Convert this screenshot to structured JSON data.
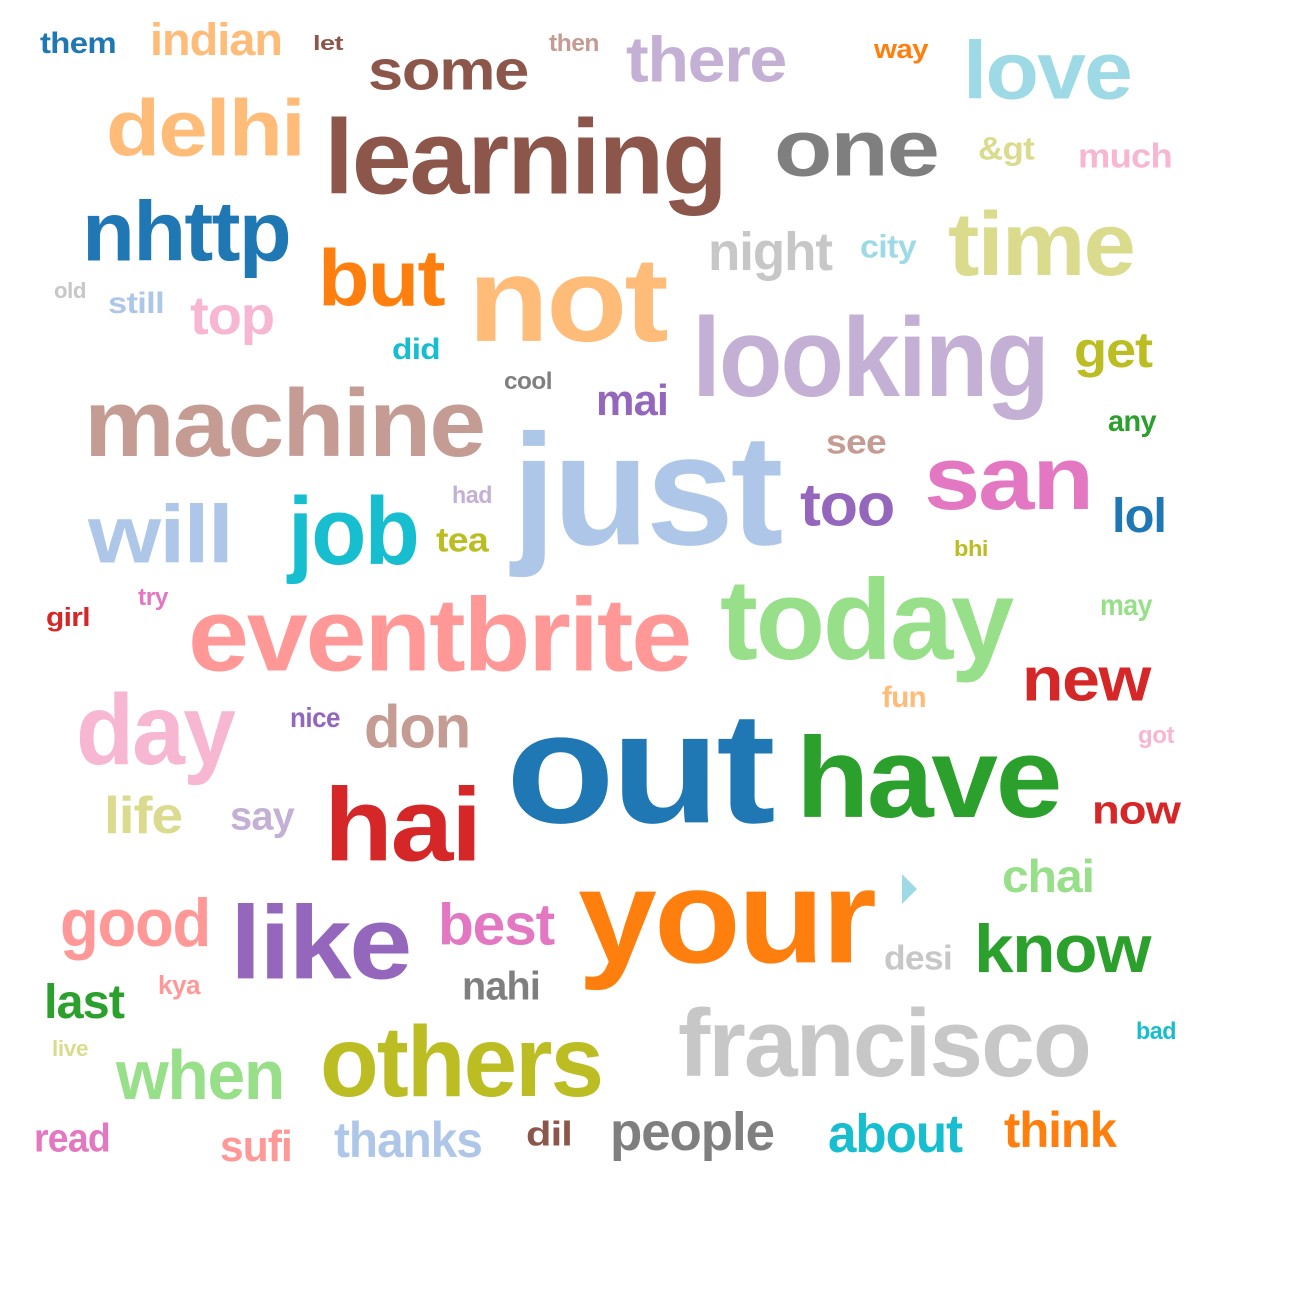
{
  "words": [
    {
      "text": "them",
      "color": "#1f77b4"
    },
    {
      "text": "indian",
      "color": "#ffbb78"
    },
    {
      "text": "let",
      "color": "#8c564b"
    },
    {
      "text": "some",
      "color": "#8c564b"
    },
    {
      "text": "then",
      "color": "#c49c94"
    },
    {
      "text": "there",
      "color": "#c5b0d5"
    },
    {
      "text": "way",
      "color": "#ff7f0e"
    },
    {
      "text": "love",
      "color": "#9edae5"
    },
    {
      "text": "delhi",
      "color": "#ffbb78"
    },
    {
      "text": "learning",
      "color": "#8c564b"
    },
    {
      "text": "one",
      "color": "#7f7f7f"
    },
    {
      "text": "&gt",
      "color": "#dbdb8d"
    },
    {
      "text": "much",
      "color": "#f7b6d2"
    },
    {
      "text": "nhttp",
      "color": "#1f77b4"
    },
    {
      "text": "night",
      "color": "#c7c7c7"
    },
    {
      "text": "city",
      "color": "#9edae5"
    },
    {
      "text": "time",
      "color": "#dbdb8d"
    },
    {
      "text": "but",
      "color": "#ff7f0e"
    },
    {
      "text": "not",
      "color": "#ffbb78"
    },
    {
      "text": "old",
      "color": "#c7c7c7"
    },
    {
      "text": "still",
      "color": "#aec7e8"
    },
    {
      "text": "top",
      "color": "#f7b6d2"
    },
    {
      "text": "looking",
      "color": "#c5b0d5"
    },
    {
      "text": "get",
      "color": "#bcbd22"
    },
    {
      "text": "did",
      "color": "#17becf"
    },
    {
      "text": "cool",
      "color": "#7f7f7f"
    },
    {
      "text": "mai",
      "color": "#9467bd"
    },
    {
      "text": "machine",
      "color": "#c49c94"
    },
    {
      "text": "any",
      "color": "#2ca02c"
    },
    {
      "text": "see",
      "color": "#c49c94"
    },
    {
      "text": "just",
      "color": "#aec7e8"
    },
    {
      "text": "san",
      "color": "#e377c2"
    },
    {
      "text": "had",
      "color": "#c5b0d5"
    },
    {
      "text": "too",
      "color": "#9467bd"
    },
    {
      "text": "lol",
      "color": "#1f77b4"
    },
    {
      "text": "will",
      "color": "#aec7e8"
    },
    {
      "text": "job",
      "color": "#17becf"
    },
    {
      "text": "tea",
      "color": "#bcbd22"
    },
    {
      "text": "bhi",
      "color": "#bcbd22"
    },
    {
      "text": "try",
      "color": "#e377c2"
    },
    {
      "text": "girl",
      "color": "#d62728"
    },
    {
      "text": "may",
      "color": "#98df8a"
    },
    {
      "text": "today",
      "color": "#98df8a"
    },
    {
      "text": "eventbrite",
      "color": "#ff9896"
    },
    {
      "text": "new",
      "color": "#d62728"
    },
    {
      "text": "fun",
      "color": "#ffbb78"
    },
    {
      "text": "day",
      "color": "#f7b6d2"
    },
    {
      "text": "nice",
      "color": "#9467bd"
    },
    {
      "text": "don",
      "color": "#c49c94"
    },
    {
      "text": "got",
      "color": "#f7b6d2"
    },
    {
      "text": "out",
      "color": "#1f77b4"
    },
    {
      "text": "have",
      "color": "#2ca02c"
    },
    {
      "text": "life",
      "color": "#dbdb8d"
    },
    {
      "text": "say",
      "color": "#c5b0d5"
    },
    {
      "text": "hai",
      "color": "#d62728"
    },
    {
      "text": "now",
      "color": "#d62728"
    },
    {
      "text": "chai",
      "color": "#98df8a"
    },
    {
      "text": "good",
      "color": "#ff9896"
    },
    {
      "text": "like",
      "color": "#9467bd"
    },
    {
      "text": "best",
      "color": "#e377c2"
    },
    {
      "text": "your",
      "color": "#ff7f0e"
    },
    {
      "text": "desi",
      "color": "#c7c7c7"
    },
    {
      "text": "know",
      "color": "#2ca02c"
    },
    {
      "text": "kya",
      "color": "#ff9896"
    },
    {
      "text": "last",
      "color": "#2ca02c"
    },
    {
      "text": "nahi",
      "color": "#7f7f7f"
    },
    {
      "text": "bad",
      "color": "#17becf"
    },
    {
      "text": "live",
      "color": "#dbdb8d"
    },
    {
      "text": "when",
      "color": "#98df8a"
    },
    {
      "text": "others",
      "color": "#bcbd22"
    },
    {
      "text": "francisco",
      "color": "#c7c7c7"
    },
    {
      "text": "read",
      "color": "#e377c2"
    },
    {
      "text": "sufi",
      "color": "#ff9896"
    },
    {
      "text": "thanks",
      "color": "#aec7e8"
    },
    {
      "text": "dil",
      "color": "#8c564b"
    },
    {
      "text": "people",
      "color": "#7f7f7f"
    },
    {
      "text": "about",
      "color": "#17becf"
    },
    {
      "text": "think",
      "color": "#ff7f0e"
    }
  ],
  "glyph": {
    "icon": "triangle-right-icon",
    "color": "#9edae5"
  }
}
